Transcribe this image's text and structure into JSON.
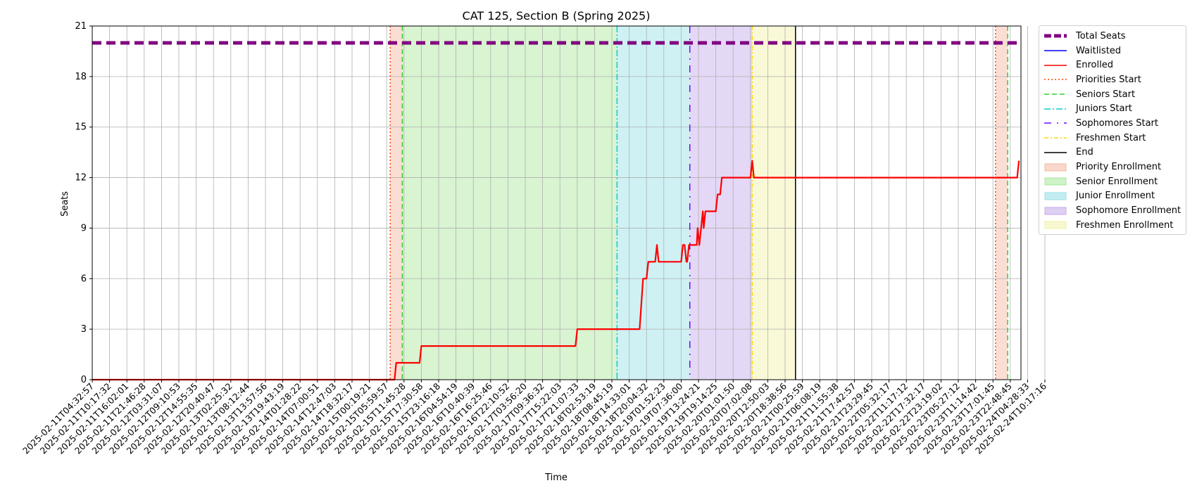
{
  "chart_data": {
    "type": "line",
    "title": "CAT 125, Section B (Spring 2025)",
    "xlabel": "Time",
    "ylabel": "Seats",
    "ylim": [
      0,
      21
    ],
    "yticks": [
      0,
      3,
      6,
      9,
      12,
      15,
      18,
      21
    ],
    "grid": true,
    "legend_position": "outside right, top",
    "x_tick_labels": [
      "2025-02-11T04:32:57",
      "2025-02-11T10:17:32",
      "2025-02-11T16:02:01",
      "2025-02-11T21:46:28",
      "2025-02-12T03:31:07",
      "2025-02-12T09:10:53",
      "2025-02-12T14:55:35",
      "2025-02-12T20:40:47",
      "2025-02-13T02:25:32",
      "2025-02-13T08:12:44",
      "2025-02-13T13:57:56",
      "2025-02-13T19:43:19",
      "2025-02-14T01:28:22",
      "2025-02-14T07:00:51",
      "2025-02-14T12:47:03",
      "2025-02-14T18:32:17",
      "2025-02-15T00:19:21",
      "2025-02-15T05:59:57",
      "2025-02-15T11:45:28",
      "2025-02-15T17:30:58",
      "2025-02-15T23:16:18",
      "2025-02-16T04:54:19",
      "2025-02-16T10:40:39",
      "2025-02-16T16:25:46",
      "2025-02-16T22:10:52",
      "2025-02-17T03:56:20",
      "2025-02-17T09:36:32",
      "2025-02-17T15:22:03",
      "2025-02-17T21:07:33",
      "2025-02-18T02:53:19",
      "2025-02-18T08:45:19",
      "2025-02-18T14:33:01",
      "2025-02-18T20:04:32",
      "2025-02-19T01:52:23",
      "2025-02-19T07:36:00",
      "2025-02-19T13:24:21",
      "2025-02-19T19:14:25",
      "2025-02-20T01:01:50",
      "2025-02-20T07:02:08",
      "2025-02-20T12:50:03",
      "2025-02-20T18:38:56",
      "2025-02-21T00:25:59",
      "2025-02-21T06:08:19",
      "2025-02-21T11:55:38",
      "2025-02-21T17:42:57",
      "2025-02-21T23:29:45",
      "2025-02-22T05:32:17",
      "2025-02-22T11:17:12",
      "2025-02-22T17:32:17",
      "2025-02-22T23:19:02",
      "2025-02-23T05:27:12",
      "2025-02-23T11:14:42",
      "2025-02-23T17:01:45",
      "2025-02-23T22:48:45",
      "2025-02-24T04:28:33",
      "2025-02-24T10:17:16"
    ],
    "series": [
      {
        "name": "Total Seats",
        "color": "#800080",
        "style": "dashed-thick",
        "points": [
          [
            0,
            20
          ],
          [
            53.5,
            20
          ]
        ]
      },
      {
        "name": "Waitlisted",
        "color": "#0000ff",
        "style": "solid",
        "points": []
      },
      {
        "name": "Enrolled",
        "color": "#ff0000",
        "style": "solid",
        "points": [
          [
            0,
            0
          ],
          [
            17.45,
            0
          ],
          [
            17.55,
            1
          ],
          [
            18.9,
            1
          ],
          [
            19.0,
            2
          ],
          [
            27.9,
            2
          ],
          [
            28.0,
            3
          ],
          [
            31.6,
            3
          ],
          [
            31.8,
            6
          ],
          [
            32.0,
            6
          ],
          [
            32.1,
            7
          ],
          [
            32.5,
            7
          ],
          [
            32.6,
            8
          ],
          [
            32.7,
            7
          ],
          [
            34.0,
            7
          ],
          [
            34.1,
            8
          ],
          [
            34.2,
            8
          ],
          [
            34.3,
            7
          ],
          [
            34.35,
            7
          ],
          [
            34.45,
            8
          ],
          [
            34.9,
            8
          ],
          [
            34.95,
            9
          ],
          [
            35.05,
            8
          ],
          [
            35.15,
            9
          ],
          [
            35.25,
            10
          ],
          [
            35.3,
            9
          ],
          [
            35.4,
            10
          ],
          [
            36.0,
            10
          ],
          [
            36.1,
            11
          ],
          [
            36.25,
            11
          ],
          [
            36.35,
            12
          ],
          [
            38.0,
            12
          ],
          [
            38.1,
            13
          ],
          [
            38.2,
            12
          ],
          [
            53.4,
            12
          ],
          [
            53.5,
            13
          ]
        ]
      }
    ],
    "phase_lines": [
      {
        "name": "Priorities Start",
        "color": "#ff4500",
        "style": "dotted",
        "x": [
          17.2,
          52.15
        ]
      },
      {
        "name": "Seniors Start",
        "color": "#32cd32",
        "style": "dashed",
        "x": [
          17.9,
          52.85
        ]
      },
      {
        "name": "Juniors Start",
        "color": "#00ced1",
        "style": "dashdot",
        "x": [
          30.3
        ]
      },
      {
        "name": "Sophomores Start",
        "color": "#6a0dff",
        "style": "loosely-dashdot",
        "x": [
          34.5
        ]
      },
      {
        "name": "Freshmen Start",
        "color": "#ffd700",
        "style": "dashdotted",
        "x": [
          38.1
        ]
      },
      {
        "name": "End",
        "color": "#000000",
        "style": "solid",
        "x": [
          40.6
        ]
      }
    ],
    "phases": [
      {
        "name": "Priority Enrollment",
        "color": "#f4b6a0",
        "ranges": [
          [
            17.2,
            17.9
          ],
          [
            52.15,
            52.85
          ]
        ]
      },
      {
        "name": "Senior Enrollment",
        "color": "#a8e79a",
        "ranges": [
          [
            17.9,
            30.3
          ]
        ]
      },
      {
        "name": "Junior Enrollment",
        "color": "#95dfe6",
        "ranges": [
          [
            30.3,
            34.5
          ]
        ]
      },
      {
        "name": "Sophomore Enrollment",
        "color": "#c3a8eb",
        "ranges": [
          [
            34.5,
            38.1
          ]
        ]
      },
      {
        "name": "Freshmen Enrollment",
        "color": "#f1f1a8",
        "ranges": [
          [
            38.1,
            40.6
          ]
        ]
      }
    ],
    "legend": [
      {
        "label": "Total Seats",
        "kind": "line",
        "color": "#800080",
        "style": "dashed-thick"
      },
      {
        "label": "Waitlisted",
        "kind": "line",
        "color": "#0000ff",
        "style": "solid"
      },
      {
        "label": "Enrolled",
        "kind": "line",
        "color": "#ff0000",
        "style": "solid"
      },
      {
        "label": "Priorities Start",
        "kind": "line",
        "color": "#ff4500",
        "style": "dotted"
      },
      {
        "label": "Seniors Start",
        "kind": "line",
        "color": "#32cd32",
        "style": "dashed"
      },
      {
        "label": "Juniors Start",
        "kind": "line",
        "color": "#00ced1",
        "style": "dashdot"
      },
      {
        "label": "Sophomores Start",
        "kind": "line",
        "color": "#6a0dff",
        "style": "loosely-dashdot"
      },
      {
        "label": "Freshmen Start",
        "kind": "line",
        "color": "#ffd700",
        "style": "dashdotted"
      },
      {
        "label": "End",
        "kind": "line",
        "color": "#000000",
        "style": "solid"
      },
      {
        "label": "Priority Enrollment",
        "kind": "patch",
        "color": "#f4b6a0"
      },
      {
        "label": "Senior Enrollment",
        "kind": "patch",
        "color": "#a8e79a"
      },
      {
        "label": "Junior Enrollment",
        "kind": "patch",
        "color": "#95dfe6"
      },
      {
        "label": "Sophomore Enrollment",
        "kind": "patch",
        "color": "#c3a8eb"
      },
      {
        "label": "Freshmen Enrollment",
        "kind": "patch",
        "color": "#f1f1a8"
      }
    ]
  }
}
